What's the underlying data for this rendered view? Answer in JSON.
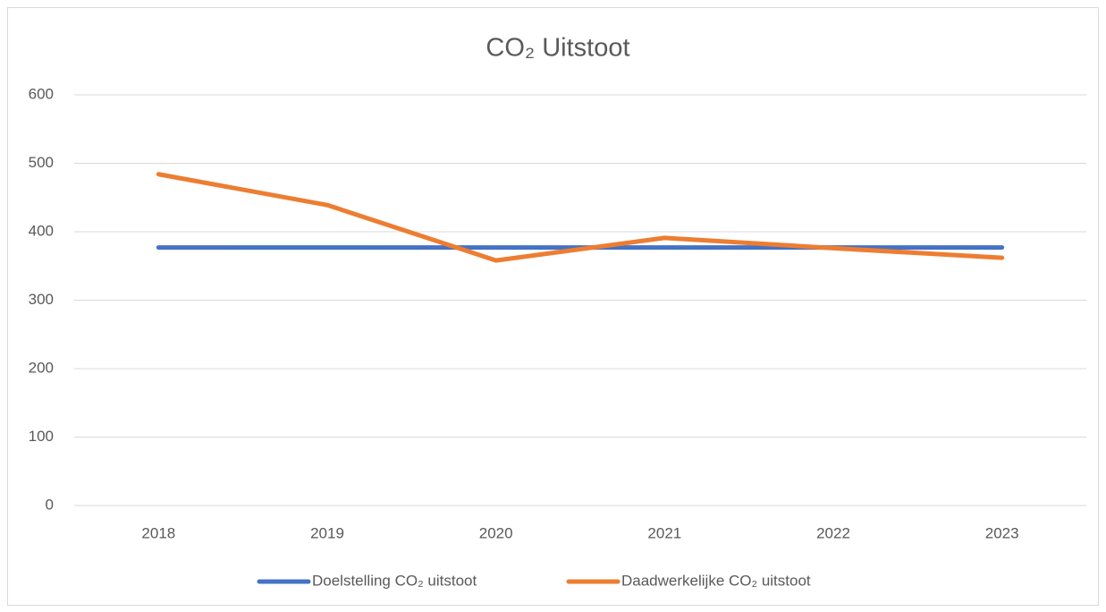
{
  "chart_data": {
    "type": "line",
    "title": "CO₂ Uitstoot",
    "categories": [
      "2018",
      "2019",
      "2020",
      "2021",
      "2022",
      "2023"
    ],
    "series": [
      {
        "name": "Doelstelling CO₂ uitstoot",
        "color": "#4472c4",
        "values": [
          377,
          377,
          377,
          377,
          377,
          377
        ]
      },
      {
        "name": "Daadwerkelijke CO₂ uitstoot",
        "color": "#ed7d31",
        "values": [
          484,
          439,
          358,
          391,
          376,
          362
        ]
      }
    ],
    "ylim": [
      0,
      600
    ],
    "yticks": [
      0,
      100,
      200,
      300,
      400,
      500,
      600
    ],
    "grid": true,
    "legend": "bottom"
  }
}
